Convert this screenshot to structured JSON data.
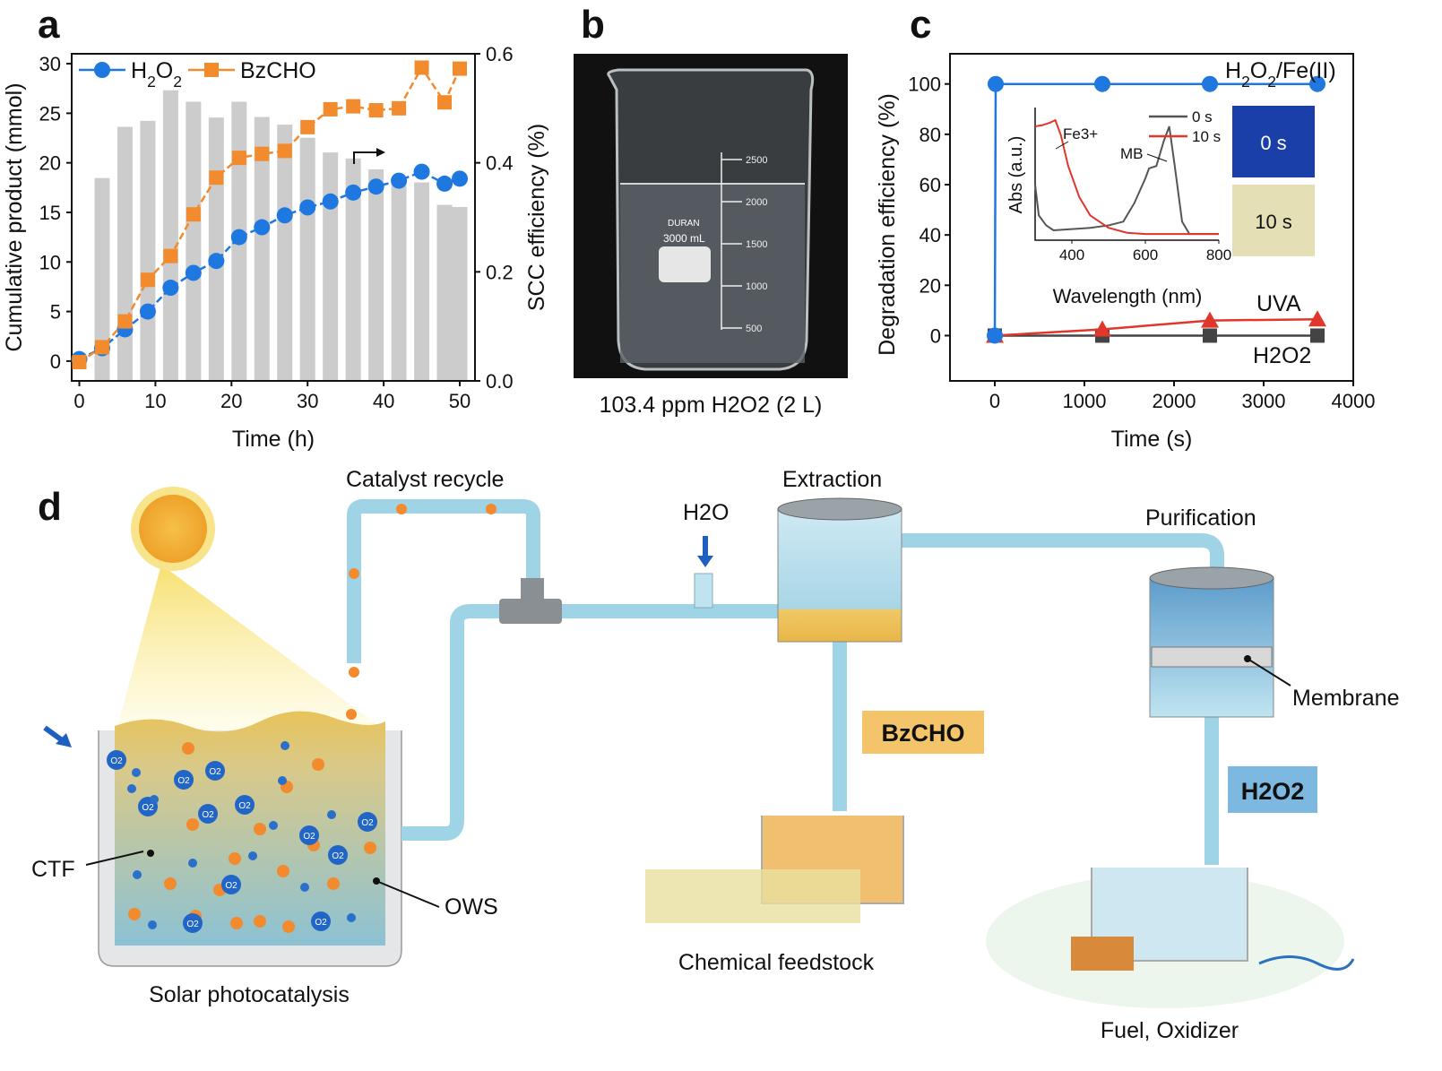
{
  "panels": {
    "a": "a",
    "b": "b",
    "c": "c",
    "d": "d"
  },
  "colors": {
    "h2o2": "#1f77e0",
    "bzcho": "#f28a2e",
    "bars": "#cccccc",
    "uva": "#e0362b",
    "h2o2_ctrl": "#444444",
    "spectrum_0s": "#555555",
    "spectrum_10s": "#e0362b"
  },
  "chart_data": [
    {
      "panel": "a",
      "type": "bar+line",
      "xlabel": "Time (h)",
      "ylabel": "Cumulative product (mmol)",
      "y2label": "SCC efficiency (%)",
      "xlim": [
        -1,
        52
      ],
      "ylim": [
        -2,
        31
      ],
      "y2lim": [
        0,
        0.6
      ],
      "xticks": [
        "0",
        "10",
        "20",
        "30",
        "40",
        "50"
      ],
      "yticks": [
        "0",
        "5",
        "10",
        "15",
        "20",
        "25",
        "30"
      ],
      "y2ticks": [
        "0.0",
        "0.2",
        "0.4",
        "0.6"
      ],
      "legend": "top-left",
      "annotation_arrow": "right (bars read on right axis)",
      "bars": {
        "axis": "right",
        "x": [
          3,
          6,
          9,
          12,
          15,
          18,
          21,
          24,
          27,
          30,
          33,
          36,
          39,
          42,
          45,
          48,
          50
        ],
        "values": [
          0.372,
          0.466,
          0.477,
          0.533,
          0.512,
          0.483,
          0.512,
          0.484,
          0.47,
          0.446,
          0.419,
          0.408,
          0.388,
          0.37,
          0.364,
          0.323,
          0.319
        ]
      },
      "series": [
        {
          "name": "H2O2",
          "marker": "circle",
          "x": [
            0,
            3,
            6,
            9,
            12,
            15,
            18,
            21,
            24,
            27,
            30,
            33,
            36,
            39,
            42,
            45,
            48,
            50
          ],
          "values": [
            0.2,
            1.3,
            3.2,
            5.0,
            7.4,
            8.9,
            10.1,
            12.5,
            13.5,
            14.7,
            15.5,
            16.1,
            17.0,
            17.6,
            18.2,
            19.1,
            17.9,
            18.4
          ]
        },
        {
          "name": "BzCHO",
          "marker": "square",
          "x": [
            0,
            3,
            6,
            9,
            12,
            15,
            18,
            21,
            24,
            27,
            30,
            33,
            36,
            39,
            42,
            45,
            48,
            50
          ],
          "values": [
            -0.1,
            1.4,
            4.0,
            8.2,
            10.6,
            14.8,
            18.5,
            20.5,
            20.9,
            21.2,
            23.6,
            25.4,
            25.7,
            25.3,
            25.5,
            29.6,
            26.1,
            29.5
          ]
        }
      ]
    },
    {
      "panel": "c",
      "type": "line",
      "xlabel": "Time (s)",
      "ylabel": "Degradation efficiency (%)",
      "xlim": [
        -500,
        4000
      ],
      "ylim": [
        -18,
        112
      ],
      "xticks": [
        "0",
        "1000",
        "2000",
        "3000",
        "4000"
      ],
      "yticks": [
        "0",
        "20",
        "40",
        "60",
        "80",
        "100"
      ],
      "series": [
        {
          "name": "H2O2/Fe(II)",
          "marker": "circle",
          "x": [
            0,
            10,
            1200,
            2400,
            3600
          ],
          "values": [
            0,
            100,
            100,
            100,
            100
          ]
        },
        {
          "name": "UVA",
          "marker": "triangle",
          "x": [
            0,
            1200,
            2400,
            3600
          ],
          "values": [
            0,
            2.5,
            6,
            6.5
          ]
        },
        {
          "name": "H2O2",
          "marker": "square",
          "x": [
            0,
            1200,
            2400,
            3600
          ],
          "values": [
            0,
            0,
            0,
            0
          ]
        }
      ],
      "inset": {
        "type": "line",
        "xlabel": "Wavelength (nm)",
        "ylabel": "Abs (a.u.)",
        "xlim": [
          300,
          800
        ],
        "xticks": [
          "400",
          "600",
          "800"
        ],
        "series": [
          {
            "name": "0 s",
            "x": [
              300,
              310,
              330,
              350,
              400,
              450,
              500,
              540,
              570,
              600,
              610,
              630,
              650,
              665,
              680,
              700,
              720,
              800
            ],
            "values": [
              0.45,
              0.2,
              0.12,
              0.08,
              0.09,
              0.1,
              0.12,
              0.15,
              0.3,
              0.5,
              0.58,
              0.6,
              0.8,
              0.92,
              0.6,
              0.15,
              0.05,
              0.05
            ]
          },
          {
            "name": "10 s",
            "x": [
              300,
              320,
              340,
              355,
              370,
              390,
              420,
              450,
              500,
              550,
              600,
              700,
              800
            ],
            "values": [
              0.92,
              0.93,
              0.95,
              0.97,
              0.85,
              0.6,
              0.35,
              0.2,
              0.1,
              0.06,
              0.05,
              0.05,
              0.05
            ]
          }
        ],
        "annotations": [
          "Fe3+",
          "MB"
        ],
        "photos": [
          "0 s",
          "10 s"
        ]
      }
    }
  ],
  "panel_b": {
    "caption": "103.4 ppm H2O2 (2 L)",
    "beaker_brand": "DURAN",
    "beaker_volume": "3000 mL",
    "graduations": [
      "2500",
      "2000",
      "1500",
      "1000",
      "500"
    ]
  },
  "panel_c_labels": {
    "fe": "H2O2/Fe(II)",
    "uva": "UVA",
    "h2o2": "H2O2",
    "fe3": "Fe3+",
    "mb": "MB",
    "leg0": "0 s",
    "leg10": "10 s",
    "photo0": "0 s",
    "photo10": "10 s"
  },
  "diagram": {
    "catalyst_recycle": "Catalyst recycle",
    "h2o": "H2O",
    "extraction": "Extraction",
    "purification": "Purification",
    "membrane": "Membrane",
    "bzcho": "BzCHO",
    "h2o2": "H2O2",
    "ctf": "CTF",
    "ows": "OWS",
    "o2": "O2",
    "solar": "Solar photocatalysis",
    "chemical": "Chemical feedstock",
    "fuel": "Fuel, Oxidizer"
  }
}
